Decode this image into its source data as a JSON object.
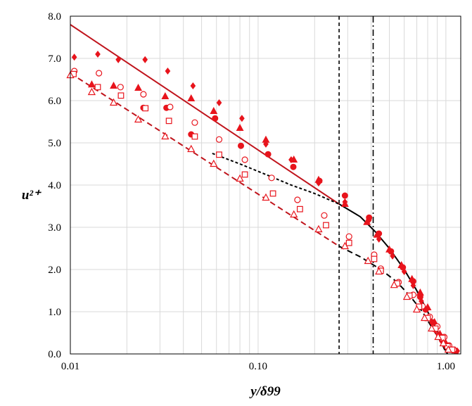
{
  "chart_data": {
    "type": "scatter",
    "xscale": "log",
    "xlim": [
      0.01,
      1.2
    ],
    "ylim": [
      0.0,
      8.0
    ],
    "grid": true,
    "xlabel": "y/δ99",
    "ylabel": "u²⁺",
    "x_ticks": [
      0.01,
      0.1,
      1.0
    ],
    "x_tick_labels": [
      "0.01",
      "0.10",
      "1.00"
    ],
    "y_ticks": [
      0,
      1,
      2,
      3,
      4,
      5,
      6,
      7,
      8
    ],
    "y_tick_labels": [
      "0.0",
      "1.0",
      "2.0",
      "3.0",
      "4.0",
      "5.0",
      "6.0",
      "7.0",
      "8.0"
    ],
    "colors": {
      "red": "#e8141c",
      "dark_red": "#c0141c",
      "black": "#000000"
    },
    "vertical_lines": [
      {
        "x": 0.27,
        "style": "dashed"
      },
      {
        "x": 0.41,
        "style": "dashdot"
      }
    ],
    "lines": [
      {
        "style": "solid",
        "color": "dark_red",
        "x": [
          0.01,
          0.27
        ],
        "y": [
          7.8,
          3.55
        ]
      },
      {
        "style": "dashed",
        "color": "dark_red",
        "x": [
          0.01,
          0.27
        ],
        "y": [
          6.65,
          2.55
        ]
      },
      {
        "style": "solid",
        "color": "black",
        "x": [
          0.27,
          0.35,
          0.42,
          0.5,
          0.6,
          0.7,
          0.8,
          0.9,
          0.97,
          1.02
        ],
        "y": [
          3.55,
          3.25,
          2.9,
          2.5,
          2.0,
          1.5,
          1.0,
          0.55,
          0.2,
          0.0
        ]
      },
      {
        "style": "dotted",
        "color": "black",
        "x": [
          0.057,
          0.08,
          0.11,
          0.15,
          0.2,
          0.27
        ],
        "y": [
          4.75,
          4.5,
          4.25,
          4.0,
          3.8,
          3.55
        ]
      },
      {
        "style": "dashed",
        "color": "black",
        "x": [
          0.27,
          0.35,
          0.45,
          0.55,
          0.65,
          0.75,
          0.85,
          0.95,
          1.01
        ],
        "y": [
          2.55,
          2.3,
          2.0,
          1.7,
          1.35,
          1.0,
          0.6,
          0.25,
          0.0
        ]
      }
    ],
    "series": [
      {
        "marker": "diamond-filled",
        "color": "red",
        "x": [
          0.0105,
          0.014,
          0.018,
          0.025,
          0.033,
          0.045,
          0.062,
          0.082,
          0.11,
          0.15,
          0.21,
          0.29,
          0.39,
          0.44,
          0.52,
          0.6,
          0.67,
          0.74,
          0.81,
          0.88,
          0.95,
          1.02,
          1.08,
          1.15
        ],
        "y": [
          7.03,
          7.1,
          6.97,
          6.97,
          6.7,
          6.35,
          5.95,
          5.58,
          4.97,
          4.6,
          4.05,
          3.6,
          3.17,
          2.72,
          2.32,
          1.95,
          1.62,
          1.25,
          0.88,
          0.55,
          0.3,
          0.15,
          0.1,
          0.07
        ]
      },
      {
        "marker": "triangle-filled",
        "color": "red",
        "x": [
          0.013,
          0.017,
          0.023,
          0.032,
          0.044,
          0.058,
          0.08,
          0.11,
          0.155,
          0.21,
          0.29,
          0.38,
          0.43,
          0.5,
          0.58,
          0.66,
          0.73,
          0.8,
          0.87,
          0.93,
          1.0,
          1.06,
          1.12
        ],
        "y": [
          6.38,
          6.35,
          6.3,
          6.1,
          6.05,
          5.75,
          5.35,
          5.07,
          4.6,
          4.12,
          3.55,
          3.12,
          2.82,
          2.47,
          2.1,
          1.77,
          1.45,
          1.1,
          0.75,
          0.47,
          0.25,
          0.15,
          0.08
        ]
      },
      {
        "marker": "circle-filled",
        "color": "red",
        "x": [
          0.0245,
          0.0325,
          0.044,
          0.059,
          0.081,
          0.113,
          0.154,
          0.212,
          0.29,
          0.39,
          0.44,
          0.51,
          0.59,
          0.67,
          0.73,
          0.78,
          0.85,
          0.92,
          0.99,
          1.05,
          1.12
        ],
        "y": [
          5.83,
          5.83,
          5.2,
          5.58,
          4.93,
          4.73,
          4.43,
          4.1,
          3.75,
          3.23,
          2.85,
          2.43,
          2.05,
          1.72,
          1.35,
          1.05,
          0.75,
          0.45,
          0.22,
          0.12,
          0.08
        ]
      },
      {
        "marker": "circle-open",
        "color": "red",
        "x": [
          0.0105,
          0.0142,
          0.0185,
          0.0245,
          0.034,
          0.046,
          0.062,
          0.085,
          0.118,
          0.162,
          0.225,
          0.305,
          0.415,
          0.45,
          0.56,
          0.67,
          0.75,
          0.82,
          0.9,
          0.98,
          1.04,
          1.1
        ],
        "y": [
          6.7,
          6.65,
          6.32,
          6.15,
          5.85,
          5.48,
          5.08,
          4.6,
          4.17,
          3.65,
          3.28,
          2.78,
          2.35,
          2.02,
          1.7,
          1.4,
          1.13,
          0.88,
          0.65,
          0.4,
          0.2,
          0.1
        ]
      },
      {
        "marker": "square-open",
        "color": "red",
        "x": [
          0.0104,
          0.014,
          0.0186,
          0.0251,
          0.0335,
          0.046,
          0.062,
          0.085,
          0.12,
          0.167,
          0.23,
          0.305,
          0.415,
          0.45,
          0.55,
          0.64,
          0.72,
          0.8,
          0.88,
          0.96,
          1.02,
          1.08
        ],
        "y": [
          6.63,
          6.32,
          6.12,
          5.82,
          5.52,
          5.15,
          4.72,
          4.25,
          3.8,
          3.43,
          3.05,
          2.63,
          2.25,
          1.97,
          1.67,
          1.38,
          1.12,
          0.85,
          0.6,
          0.38,
          0.18,
          0.1
        ]
      },
      {
        "marker": "triangle-open",
        "color": "red",
        "x": [
          0.01,
          0.013,
          0.017,
          0.023,
          0.032,
          0.044,
          0.058,
          0.08,
          0.11,
          0.155,
          0.21,
          0.29,
          0.385,
          0.44,
          0.53,
          0.62,
          0.7,
          0.77,
          0.84,
          0.91,
          0.97,
          1.03
        ],
        "y": [
          6.6,
          6.2,
          5.95,
          5.55,
          5.15,
          4.85,
          4.5,
          4.15,
          3.7,
          3.3,
          2.95,
          2.55,
          2.2,
          1.95,
          1.63,
          1.35,
          1.05,
          0.85,
          0.6,
          0.4,
          0.25,
          0.1
        ]
      }
    ]
  }
}
